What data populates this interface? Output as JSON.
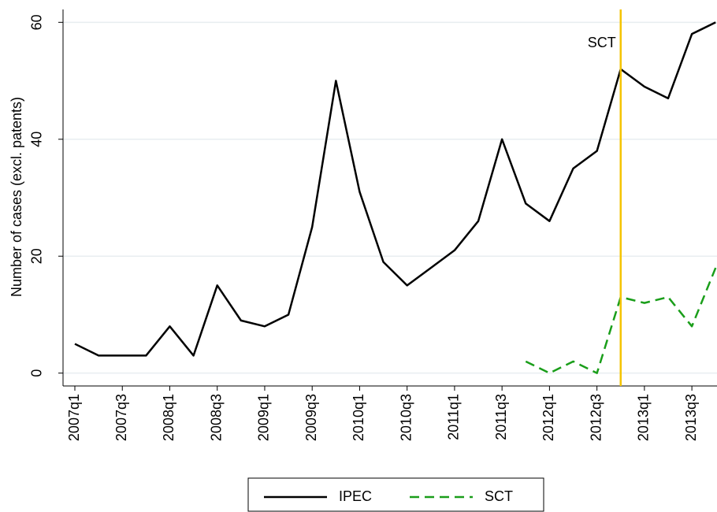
{
  "chart_data": {
    "type": "line",
    "ylabel": "Number of cases (excl. patents)",
    "categories": [
      "2007q1",
      null,
      "2007q3",
      null,
      "2008q1",
      null,
      "2008q3",
      null,
      "2009q1",
      null,
      "2009q3",
      null,
      "2010q1",
      null,
      "2010q3",
      null,
      "2011q1",
      null,
      "2011q3",
      null,
      "2012q1",
      null,
      "2012q3",
      null,
      "2013q1",
      null,
      "2013q3",
      null
    ],
    "series": [
      {
        "name": "IPEC",
        "color": "#000000",
        "dash": false,
        "values": [
          5,
          3,
          3,
          3,
          8,
          3,
          15,
          9,
          8,
          10,
          25,
          50,
          31,
          19,
          15,
          18,
          21,
          26,
          40,
          29,
          26,
          35,
          38,
          52,
          49,
          47,
          58,
          60
        ]
      },
      {
        "name": "SCT",
        "color": "#1a9e1a",
        "dash": true,
        "values": [
          null,
          null,
          null,
          null,
          null,
          null,
          null,
          null,
          null,
          null,
          null,
          null,
          null,
          null,
          null,
          null,
          null,
          null,
          null,
          2,
          0,
          2,
          0,
          13,
          12,
          13,
          8,
          18
        ]
      }
    ],
    "vline": {
      "x": 23,
      "color": "#f5c400",
      "label": "SCT"
    },
    "ylim": [
      -2.2,
      62.2
    ],
    "yticks": [
      0,
      20,
      40,
      60
    ],
    "grid": true,
    "legend": "bottom"
  }
}
